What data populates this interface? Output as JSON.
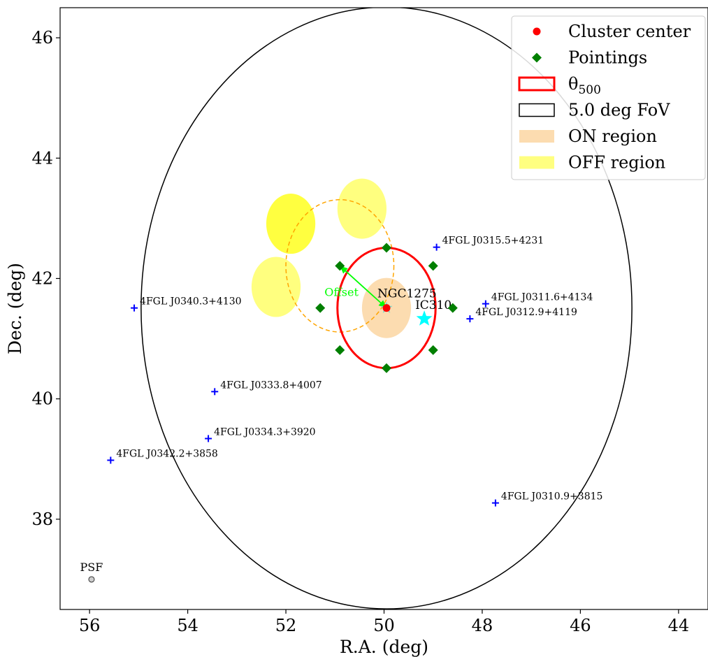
{
  "chart_data": {
    "type": "scatter",
    "xlabel": "R.A. (deg)",
    "ylabel": "Dec. (deg)",
    "xlim": [
      56.6,
      43.4
    ],
    "ylim": [
      36.5,
      46.5
    ],
    "xticks": [
      56,
      54,
      52,
      50,
      48,
      46,
      44
    ],
    "yticks": [
      38,
      40,
      42,
      44,
      46
    ],
    "x_inverted": true,
    "grid": false,
    "legend_position": "top-right",
    "legend": [
      {
        "label": "Cluster center",
        "marker": "dot",
        "color": "#ff0000"
      },
      {
        "label": "Pointings",
        "marker": "diamond",
        "color": "#008000"
      },
      {
        "label": "θ",
        "sub": "500",
        "marker": "rect",
        "edge": "#ff0000",
        "fill": "none"
      },
      {
        "label": "5.0 deg FoV",
        "marker": "rect",
        "edge": "#000000",
        "fill": "none"
      },
      {
        "label": "ON region",
        "marker": "rect",
        "edge": "none",
        "fill": "#fcdcb0"
      },
      {
        "label": "OFF region",
        "marker": "rect",
        "edge": "none",
        "fill": "#ffff80"
      }
    ],
    "cluster_center": {
      "ra": 49.95,
      "dec": 41.51,
      "name": "NGC1275"
    },
    "theta500_radius_deg": 1.0,
    "fov_radius_deg": 5.0,
    "pointings": [
      {
        "ra": 49.95,
        "dec": 42.51
      },
      {
        "ra": 49.0,
        "dec": 42.21
      },
      {
        "ra": 48.6,
        "dec": 41.51
      },
      {
        "ra": 49.0,
        "dec": 40.81
      },
      {
        "ra": 49.95,
        "dec": 40.51
      },
      {
        "ra": 50.9,
        "dec": 40.81
      },
      {
        "ra": 51.3,
        "dec": 41.51
      },
      {
        "ra": 50.9,
        "dec": 42.21
      }
    ],
    "offset_vector": {
      "from": {
        "ra": 50.9,
        "dec": 42.21
      },
      "to": {
        "ra": 49.95,
        "dec": 41.51
      },
      "label": "Offset"
    },
    "offset_circle": {
      "ra": 50.9,
      "dec": 42.21,
      "radius_deg": 1.1
    },
    "on_region": {
      "ra": 49.95,
      "dec": 41.51,
      "radius_deg": 0.5
    },
    "off_regions": [
      {
        "ra": 51.9,
        "dec": 42.91,
        "radius_deg": 0.5,
        "alpha": 0.75
      },
      {
        "ra": 50.45,
        "dec": 43.16,
        "radius_deg": 0.5,
        "alpha": 0.5
      },
      {
        "ra": 52.2,
        "dec": 41.86,
        "radius_deg": 0.5,
        "alpha": 0.5
      }
    ],
    "stars": [
      {
        "ra": 49.95,
        "dec": 41.51,
        "name": "",
        "color": "#7fd8c8",
        "size": 9
      },
      {
        "ra": 49.18,
        "dec": 41.33,
        "name": "IC310",
        "color": "#00ffff",
        "size": 12
      }
    ],
    "sources": [
      {
        "ra": 48.93,
        "dec": 42.52,
        "name": "4FGL J0315.5+4231"
      },
      {
        "ra": 47.93,
        "dec": 41.58,
        "name": "4FGL J0311.6+4134"
      },
      {
        "ra": 48.25,
        "dec": 41.33,
        "name": "4FGL J0312.9+4119"
      },
      {
        "ra": 55.09,
        "dec": 41.51,
        "name": "4FGL J0340.3+4130"
      },
      {
        "ra": 53.45,
        "dec": 40.12,
        "name": "4FGL J0333.8+4007"
      },
      {
        "ra": 53.58,
        "dec": 39.34,
        "name": "4FGL J0334.3+3920"
      },
      {
        "ra": 55.57,
        "dec": 38.98,
        "name": "4FGL J0342.2+3858"
      },
      {
        "ra": 47.73,
        "dec": 38.27,
        "name": "4FGL J0310.9+3815"
      }
    ],
    "psf": {
      "ra": 55.96,
      "dec": 37.0,
      "label": "PSF"
    }
  }
}
